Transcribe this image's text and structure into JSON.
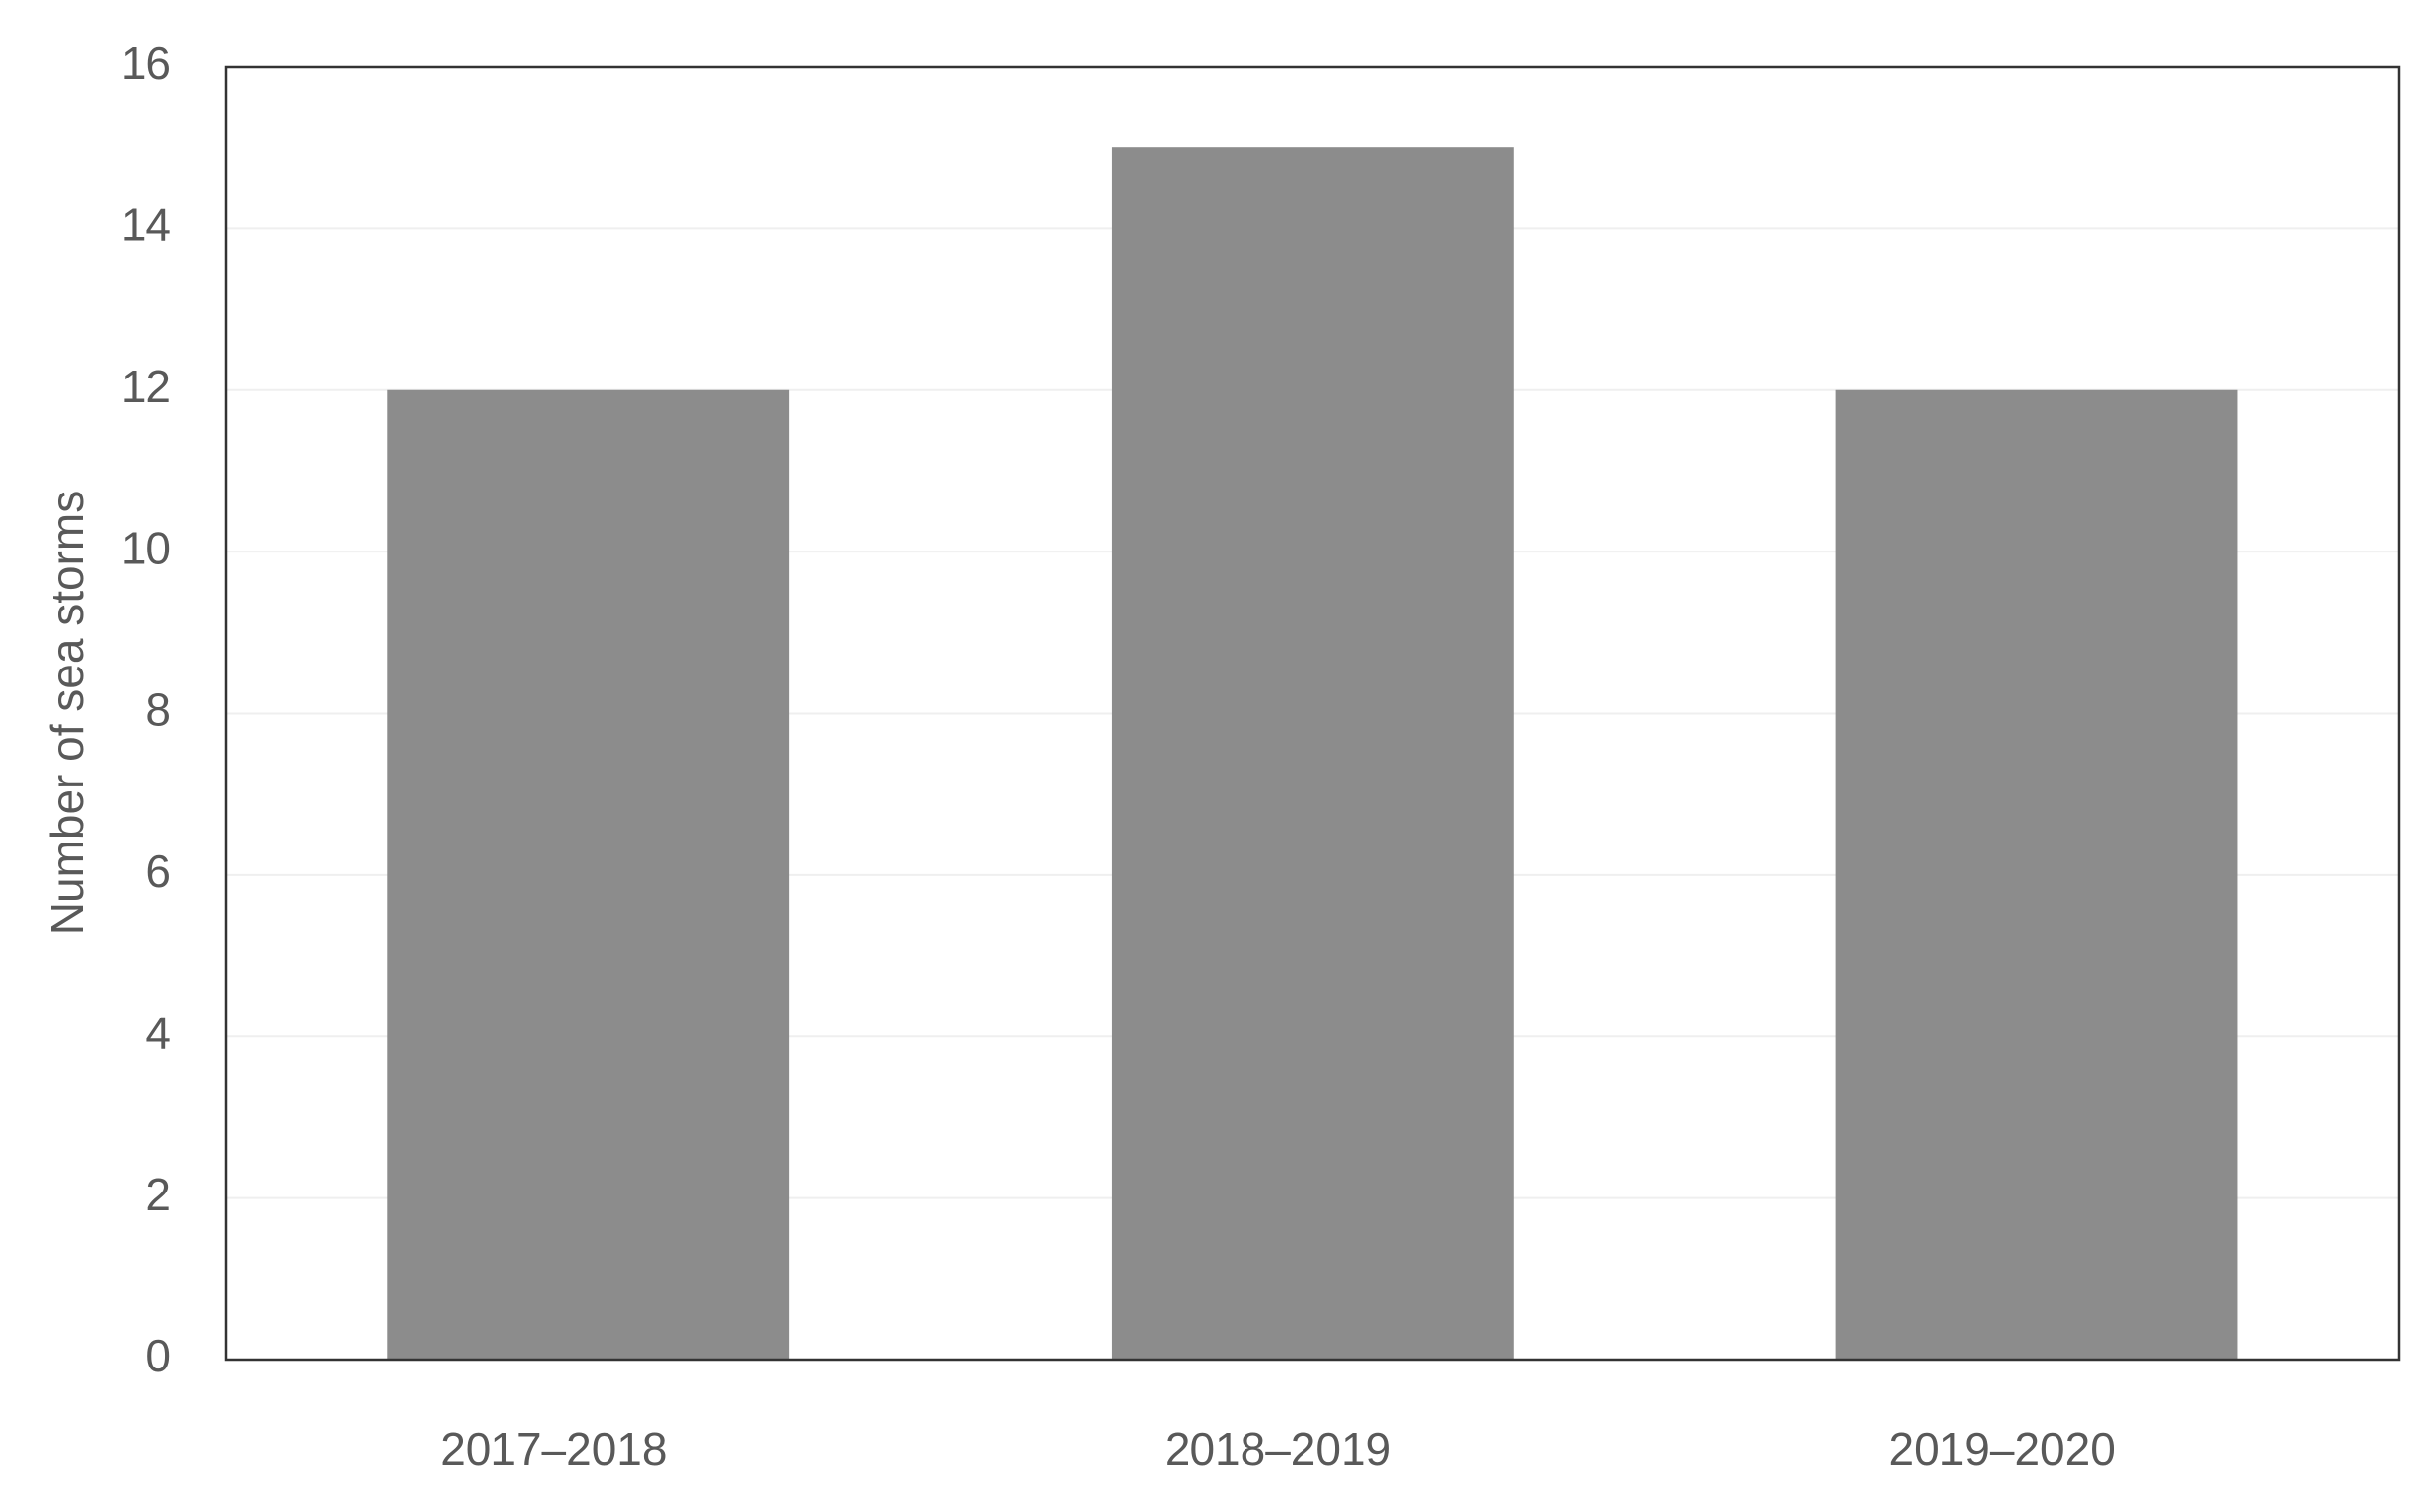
{
  "chart_data": {
    "type": "bar",
    "y_label": "Number of sea storms",
    "categories": [
      "2017–2018",
      "2018–2019",
      "2019–2020"
    ],
    "values": [
      12,
      15,
      12
    ],
    "color": "#8c8c8c",
    "ylim": [
      0,
      16
    ],
    "yticks": [
      0,
      2,
      4,
      6,
      8,
      10,
      12,
      14,
      16
    ],
    "grid": true
  }
}
